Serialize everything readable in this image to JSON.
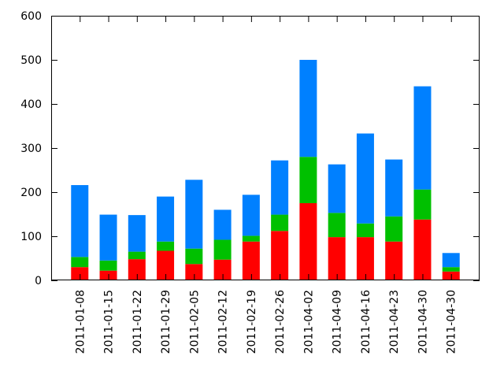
{
  "chart_data": {
    "type": "bar",
    "stacked": true,
    "categories": [
      "2011-01-08",
      "2011-01-15",
      "2011-01-22",
      "2011-01-29",
      "2011-02-05",
      "2011-02-12",
      "2011-02-19",
      "2011-02-26",
      "2011-04-02",
      "2011-04-09",
      "2011-04-16",
      "2011-04-23",
      "2011-04-30",
      "2011-04-30"
    ],
    "series": [
      {
        "color": "#ff0000",
        "values": [
          30,
          22,
          48,
          67,
          37,
          47,
          88,
          112,
          175,
          98,
          98,
          88,
          138,
          20
        ]
      },
      {
        "color": "#00c000",
        "values": [
          23,
          23,
          17,
          21,
          35,
          45,
          13,
          37,
          105,
          55,
          31,
          57,
          68,
          10
        ]
      },
      {
        "color": "#0080ff",
        "values": [
          163,
          104,
          83,
          102,
          156,
          68,
          93,
          123,
          220,
          110,
          204,
          129,
          234,
          32
        ]
      }
    ],
    "title": "",
    "xlabel": "",
    "ylabel": "",
    "ylim": [
      0,
      600
    ],
    "yticks": [
      "0",
      "100",
      "200",
      "300",
      "400",
      "500",
      "600"
    ],
    "grid": false,
    "legend": "none"
  }
}
